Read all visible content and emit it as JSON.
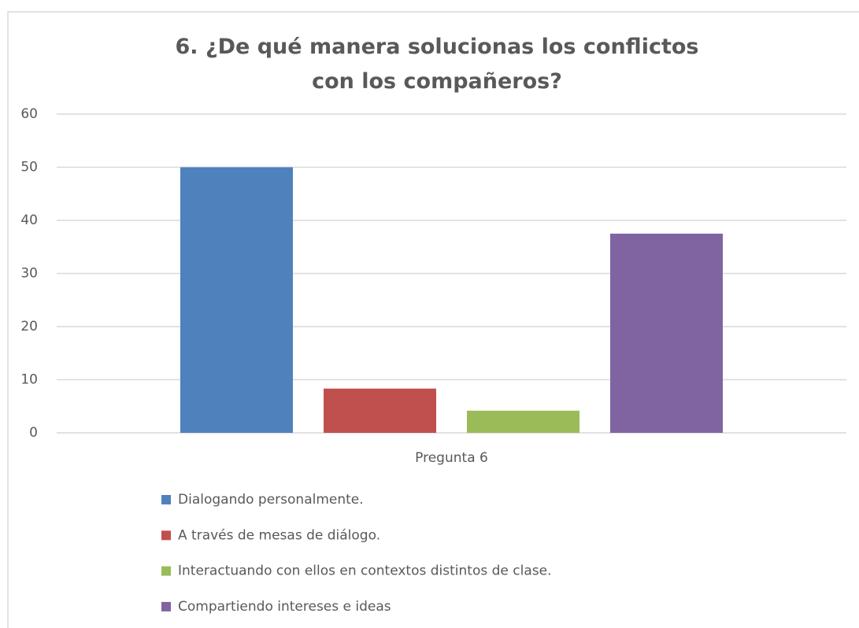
{
  "chart_data": {
    "type": "bar",
    "title": "6. ¿De qué manera solucionas los conflictos con los compañeros?",
    "categories": [
      "Pregunta 6"
    ],
    "series": [
      {
        "name": "Dialogando personalmente.",
        "color": "#4f81bd",
        "values": [
          50
        ]
      },
      {
        "name": "A través de mesas de diálogo.",
        "color": "#c0504d",
        "values": [
          8.33
        ]
      },
      {
        "name": "Interactuando con ellos en contextos distintos de clase.",
        "color": "#9bbb59",
        "values": [
          4.17
        ]
      },
      {
        "name": "Compartiendo intereses e ideas",
        "color": "#8064a2",
        "values": [
          37.5
        ]
      }
    ],
    "ylim": [
      0,
      60
    ],
    "yticks": [
      0,
      10,
      20,
      30,
      40,
      50,
      60
    ],
    "grid": true,
    "legend": "bottom"
  }
}
